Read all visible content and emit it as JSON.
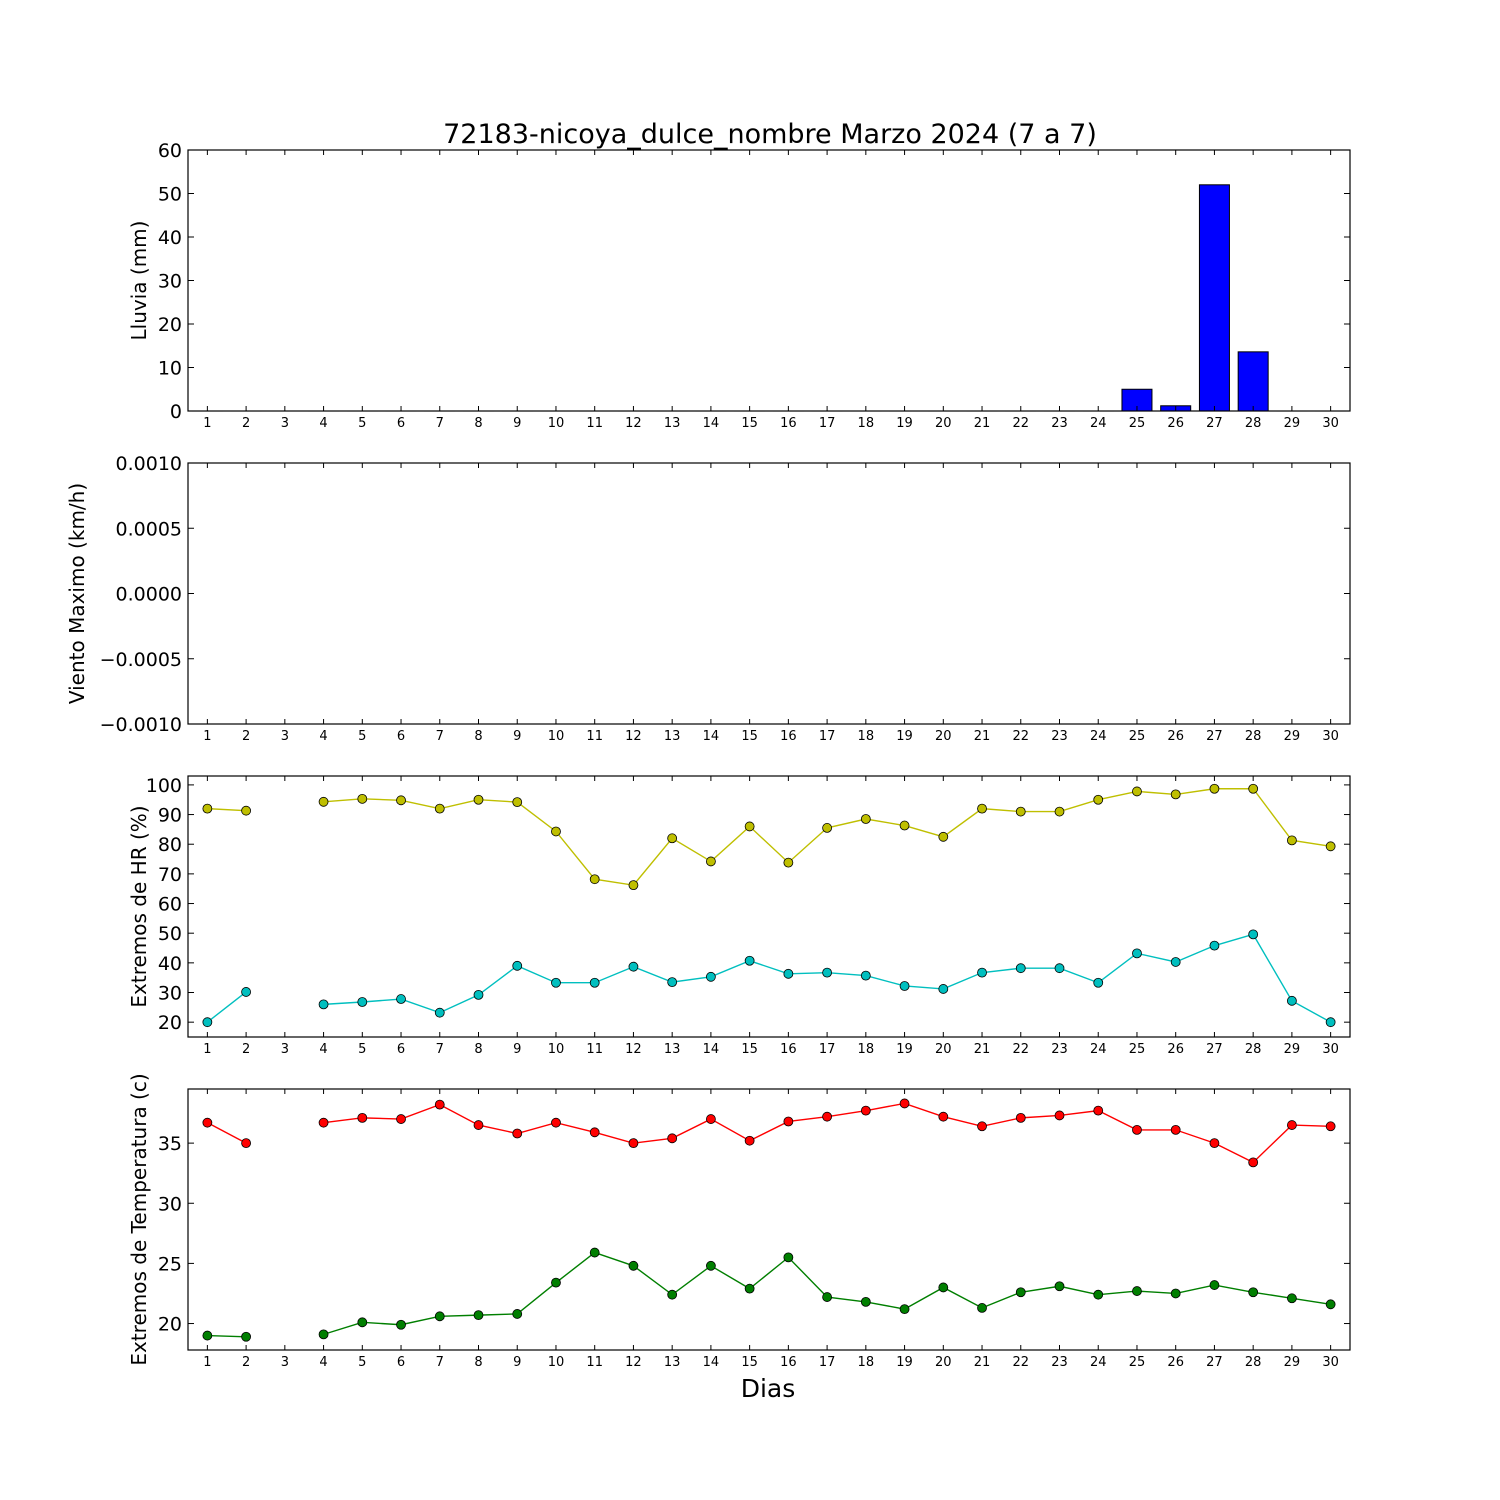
{
  "title": "72183-nicoya_dulce_nombre Marzo 2024  (7 a 7)",
  "xlabel": "Dias",
  "chart_data": [
    {
      "type": "bar",
      "ylabel": "Lluvia (mm)",
      "ylim": [
        0,
        60
      ],
      "yticks": [
        "0",
        "10",
        "20",
        "30",
        "40",
        "50",
        "60"
      ],
      "xticks": [
        "1",
        "2",
        "3",
        "4",
        "5",
        "6",
        "7",
        "8",
        "9",
        "10",
        "11",
        "12",
        "13",
        "14",
        "15",
        "16",
        "17",
        "18",
        "19",
        "20",
        "21",
        "22",
        "23",
        "24",
        "25",
        "26",
        "27",
        "28",
        "29",
        "30"
      ],
      "x": [
        1,
        2,
        3,
        4,
        5,
        6,
        7,
        8,
        9,
        10,
        11,
        12,
        13,
        14,
        15,
        16,
        17,
        18,
        19,
        20,
        21,
        22,
        23,
        24,
        25,
        26,
        27,
        28,
        29,
        30
      ],
      "series": [
        {
          "color": "#0000ff",
          "values": [
            0,
            0,
            null,
            0,
            0,
            0,
            0,
            0,
            0,
            0,
            0,
            0,
            0,
            0,
            0,
            0,
            0,
            0,
            0,
            0,
            0,
            0,
            0,
            0,
            5.0,
            1.2,
            52.0,
            13.6,
            0,
            0
          ]
        }
      ],
      "grid": false
    },
    {
      "type": "line",
      "ylabel": "Viento Maximo (km/h)",
      "ylim": [
        -0.001,
        0.001
      ],
      "yticks": [
        "−0.0010",
        "−0.0005",
        "0.0000",
        "0.0005",
        "0.0010"
      ],
      "xticks": [
        "1",
        "2",
        "3",
        "4",
        "5",
        "6",
        "7",
        "8",
        "9",
        "10",
        "11",
        "12",
        "13",
        "14",
        "15",
        "16",
        "17",
        "18",
        "19",
        "20",
        "21",
        "22",
        "23",
        "24",
        "25",
        "26",
        "27",
        "28",
        "29",
        "30"
      ],
      "x": [
        1,
        2,
        3,
        4,
        5,
        6,
        7,
        8,
        9,
        10,
        11,
        12,
        13,
        14,
        15,
        16,
        17,
        18,
        19,
        20,
        21,
        22,
        23,
        24,
        25,
        26,
        27,
        28,
        29,
        30
      ],
      "series": [],
      "grid": false
    },
    {
      "type": "line",
      "ylabel": "Extremos de HR (%)",
      "ylim": [
        15,
        103
      ],
      "yticks": [
        "20",
        "30",
        "40",
        "50",
        "60",
        "70",
        "80",
        "90",
        "100"
      ],
      "xticks": [
        "1",
        "2",
        "3",
        "4",
        "5",
        "6",
        "7",
        "8",
        "9",
        "10",
        "11",
        "12",
        "13",
        "14",
        "15",
        "16",
        "17",
        "18",
        "19",
        "20",
        "21",
        "22",
        "23",
        "24",
        "25",
        "26",
        "27",
        "28",
        "29",
        "30"
      ],
      "x": [
        1,
        2,
        3,
        4,
        5,
        6,
        7,
        8,
        9,
        10,
        11,
        12,
        13,
        14,
        15,
        16,
        17,
        18,
        19,
        20,
        21,
        22,
        23,
        24,
        25,
        26,
        27,
        28,
        29,
        30
      ],
      "series": [
        {
          "color": "#bfbf00",
          "values": [
            92,
            91.3,
            null,
            94.3,
            95.3,
            94.8,
            92,
            95,
            94.2,
            84.3,
            68.2,
            66.2,
            82,
            74.2,
            86,
            73.8,
            85.5,
            88.5,
            86.3,
            82.5,
            92,
            91,
            91,
            95,
            97.8,
            96.8,
            98.7,
            98.7,
            81.3,
            79.3
          ]
        },
        {
          "color": "#00bfbf",
          "values": [
            20,
            30.2,
            null,
            26,
            26.8,
            27.8,
            23.2,
            29.2,
            39,
            33.3,
            33.3,
            38.7,
            33.5,
            35.3,
            40.7,
            36.3,
            36.7,
            35.7,
            32.2,
            31.2,
            36.7,
            38.2,
            38.2,
            33.3,
            43.2,
            40.3,
            45.8,
            49.6,
            27.2,
            20
          ]
        }
      ],
      "grid": false
    },
    {
      "type": "line",
      "ylabel": "Extremos de Temperatura (c)",
      "ylim": [
        17.8,
        39.5
      ],
      "yticks": [
        "20",
        "25",
        "30",
        "35"
      ],
      "xticks": [
        "1",
        "2",
        "3",
        "4",
        "5",
        "6",
        "7",
        "8",
        "9",
        "10",
        "11",
        "12",
        "13",
        "14",
        "15",
        "16",
        "17",
        "18",
        "19",
        "20",
        "21",
        "22",
        "23",
        "24",
        "25",
        "26",
        "27",
        "28",
        "29",
        "30"
      ],
      "x": [
        1,
        2,
        3,
        4,
        5,
        6,
        7,
        8,
        9,
        10,
        11,
        12,
        13,
        14,
        15,
        16,
        17,
        18,
        19,
        20,
        21,
        22,
        23,
        24,
        25,
        26,
        27,
        28,
        29,
        30
      ],
      "series": [
        {
          "color": "#ff0000",
          "values": [
            36.7,
            35,
            null,
            36.7,
            37.1,
            37,
            38.2,
            36.5,
            35.8,
            36.7,
            35.9,
            35,
            35.4,
            37,
            35.2,
            36.8,
            37.2,
            37.7,
            38.3,
            37.2,
            36.4,
            37.1,
            37.3,
            37.7,
            36.1,
            36.1,
            35,
            33.4,
            36.5,
            36.4
          ]
        },
        {
          "color": "#007f00",
          "values": [
            19,
            18.9,
            null,
            19.1,
            20.1,
            19.9,
            20.6,
            20.7,
            20.8,
            23.4,
            25.9,
            24.8,
            22.4,
            24.8,
            22.9,
            25.5,
            22.2,
            21.8,
            21.2,
            23,
            21.3,
            22.6,
            23.1,
            22.4,
            22.7,
            22.5,
            23.2,
            22.6,
            22.1,
            21.6
          ]
        }
      ],
      "grid": false
    }
  ]
}
